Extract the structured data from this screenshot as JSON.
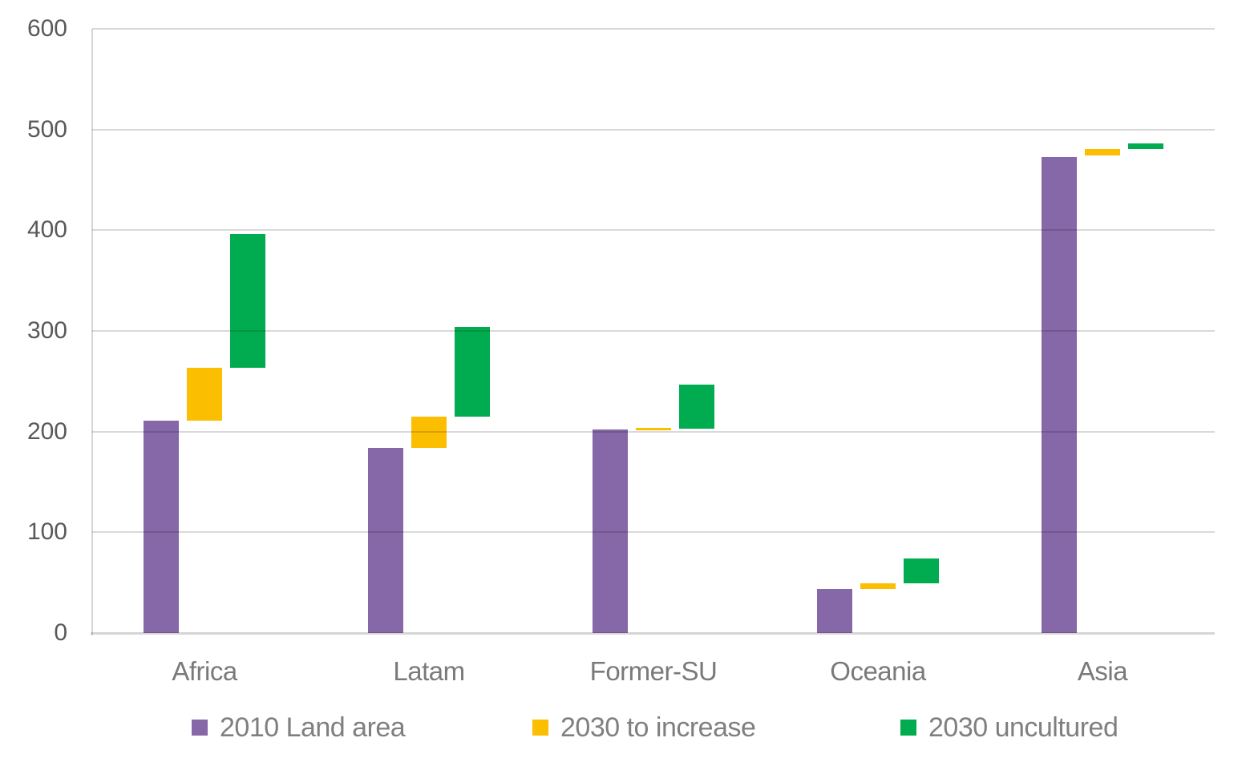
{
  "chart_data": {
    "type": "bar",
    "subtype": "floating_range_waterfall",
    "title": "",
    "xlabel": "",
    "ylabel": "",
    "categories": [
      "Africa",
      "Latam",
      "Former-SU",
      "Oceania",
      "Asia"
    ],
    "series": [
      {
        "name": "2010 Land area",
        "color": "#8667A8",
        "ranges": [
          [
            0,
            211
          ],
          [
            0,
            184
          ],
          [
            0,
            202
          ],
          [
            0,
            44
          ],
          [
            0,
            473
          ]
        ]
      },
      {
        "name": "2030 to increase",
        "color": "#FBBE00",
        "ranges": [
          [
            211,
            263
          ],
          [
            184,
            215
          ],
          [
            201,
            204
          ],
          [
            44,
            49
          ],
          [
            474,
            481
          ]
        ]
      },
      {
        "name": "2030 uncultured",
        "color": "#00AC4F",
        "ranges": [
          [
            263,
            396
          ],
          [
            215,
            304
          ],
          [
            203,
            247
          ],
          [
            49,
            74
          ],
          [
            481,
            486
          ]
        ]
      }
    ],
    "ylim": [
      0,
      600
    ],
    "yticks": [
      0,
      100,
      200,
      300,
      400,
      500,
      600
    ],
    "grid": "horizontal",
    "legend_position": "bottom",
    "colors": {
      "gridline": "#D9D9D9",
      "axis": "#D6D6D6",
      "tick_label": "#595959",
      "category_label": "#7A7A7A",
      "legend_label": "#7F7F7F",
      "background": "#FFFFFF"
    }
  }
}
